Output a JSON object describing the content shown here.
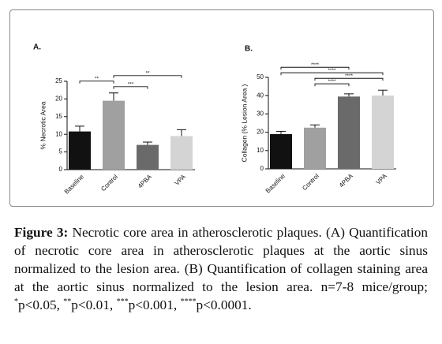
{
  "chart_data": [
    {
      "type": "bar",
      "panel": "A.",
      "y_label": "% Necrotic Area",
      "categories": [
        "Baseline",
        "Control",
        "4PBA",
        "VPA"
      ],
      "values": [
        10.8,
        19.5,
        7,
        9.5
      ],
      "errors": [
        1.5,
        2.2,
        0.8,
        1.8
      ],
      "colors": [
        "#111111",
        "#a0a0a0",
        "#6a6a6a",
        "#d4d4d4"
      ],
      "ylim": [
        0,
        25
      ],
      "yticks": [
        0,
        5,
        10,
        15,
        20,
        25
      ],
      "brackets": [
        {
          "pair": [
            1,
            2
          ],
          "label": "***"
        },
        {
          "pair": [
            0,
            1
          ],
          "label": "**"
        },
        {
          "pair": [
            1,
            3
          ],
          "label": "**"
        }
      ]
    },
    {
      "type": "bar",
      "panel": "B.",
      "y_label": "Collagen (% Lesion Area )",
      "categories": [
        "Baseline",
        "Control",
        "4PBA",
        "VPA"
      ],
      "values": [
        19,
        22.5,
        39.5,
        40
      ],
      "errors": [
        1.5,
        1.5,
        1.5,
        3
      ],
      "colors": [
        "#111111",
        "#a0a0a0",
        "#6a6a6a",
        "#d4d4d4"
      ],
      "ylim": [
        0,
        50
      ],
      "yticks": [
        0,
        10,
        20,
        30,
        40,
        50
      ],
      "brackets": [
        {
          "pair": [
            1,
            2
          ],
          "label": "****"
        },
        {
          "pair": [
            1,
            3
          ],
          "label": "****"
        },
        {
          "pair": [
            0,
            3
          ],
          "label": "****"
        },
        {
          "pair": [
            0,
            2
          ],
          "label": "****"
        }
      ]
    }
  ],
  "caption": {
    "label": "Figure 3:",
    "text": "Necrotic core area in atherosclerotic plaques. (A) Quantification of necrotic core area in atherosclerotic plaques at the aortic sinus normalized to the lesion area. (B) Quantification of collagen staining area at the aortic sinus normalized to the lesion area. n=7-8 mice/group;",
    "significance": [
      {
        "stars": "*",
        "text": "p<0.05,"
      },
      {
        "stars": "**",
        "text": "p<0.01,"
      },
      {
        "stars": "***",
        "text": "p<0.001,"
      },
      {
        "stars": "****",
        "text": "p<0.0001."
      }
    ]
  }
}
